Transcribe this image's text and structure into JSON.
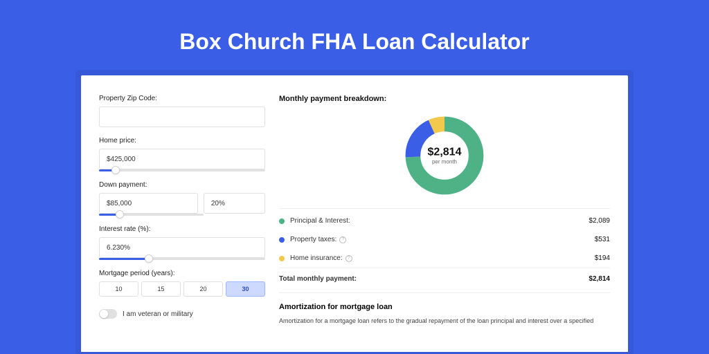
{
  "page": {
    "title": "Box Church FHA Loan Calculator",
    "background_color": "#3b5ee6"
  },
  "form": {
    "zip": {
      "label": "Property Zip Code:",
      "value": ""
    },
    "home_price": {
      "label": "Home price:",
      "value": "$425,000",
      "slider_pct": 10
    },
    "down_payment": {
      "label": "Down payment:",
      "amount": "$85,000",
      "pct": "20%",
      "slider_pct": 20
    },
    "interest": {
      "label": "Interest rate (%):",
      "value": "6.230%",
      "slider_pct": 30
    },
    "period": {
      "label": "Mortgage period (years):",
      "options": [
        "10",
        "15",
        "20",
        "30"
      ],
      "selected": "30"
    },
    "veteran": {
      "label": "I am veteran or military",
      "on": false
    }
  },
  "breakdown": {
    "title": "Monthly payment breakdown:",
    "center_amount": "$2,814",
    "center_sub": "per month",
    "items": [
      {
        "label": "Principal & Interest:",
        "value": "$2,089",
        "color": "#4fb286",
        "info": false
      },
      {
        "label": "Property taxes:",
        "value": "$531",
        "color": "#3b5ee6",
        "info": true
      },
      {
        "label": "Home insurance:",
        "value": "$194",
        "color": "#f2c94c",
        "info": true
      }
    ],
    "total": {
      "label": "Total monthly payment:",
      "value": "$2,814"
    },
    "donut": {
      "segments": [
        {
          "color": "#4fb286",
          "pct": 74.2
        },
        {
          "color": "#3b5ee6",
          "pct": 18.9
        },
        {
          "color": "#f2c94c",
          "pct": 6.9
        }
      ],
      "stroke_width": 18
    }
  },
  "amortization": {
    "title": "Amortization for mortgage loan",
    "text": "Amortization for a mortgage loan refers to the gradual repayment of the loan principal and interest over a specified"
  }
}
